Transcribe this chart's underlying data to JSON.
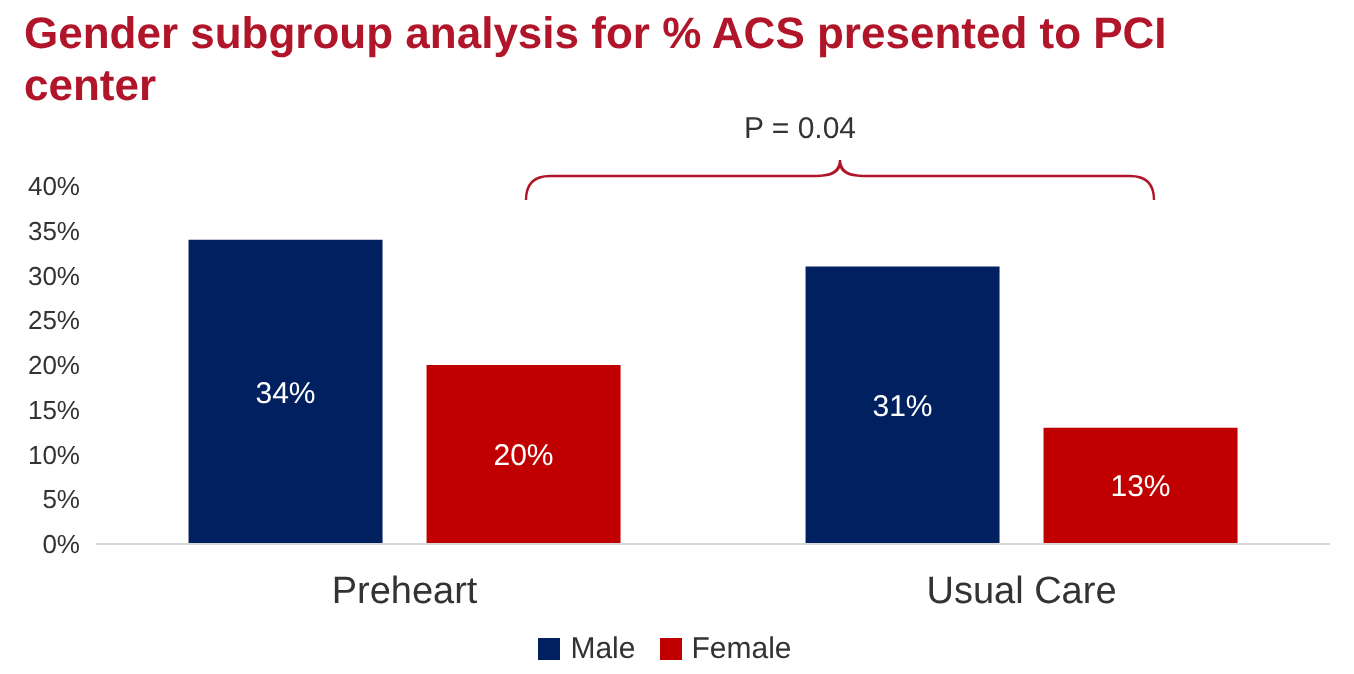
{
  "chart_data": {
    "type": "bar",
    "title": "Gender subgroup analysis for % ACS presented to PCI center",
    "categories": [
      "Preheart",
      "Usual Care"
    ],
    "series": [
      {
        "name": "Male",
        "color": "#002060",
        "values": [
          34,
          31
        ],
        "value_labels": [
          "34%",
          "31%"
        ]
      },
      {
        "name": "Female",
        "color": "#c00000",
        "values": [
          20,
          13
        ],
        "value_labels": [
          "20%",
          "13%"
        ]
      }
    ],
    "ylim": [
      0,
      40
    ],
    "yticks": [
      {
        "value": 0,
        "label": "0%"
      },
      {
        "value": 5,
        "label": "5%"
      },
      {
        "value": 10,
        "label": "10%"
      },
      {
        "value": 15,
        "label": "15%"
      },
      {
        "value": 20,
        "label": "20%"
      },
      {
        "value": 25,
        "label": "25%"
      },
      {
        "value": 30,
        "label": "30%"
      },
      {
        "value": 35,
        "label": "35%"
      },
      {
        "value": 40,
        "label": "40%"
      }
    ],
    "legend": "bottom",
    "annotations": [
      "P = 0.04"
    ]
  }
}
